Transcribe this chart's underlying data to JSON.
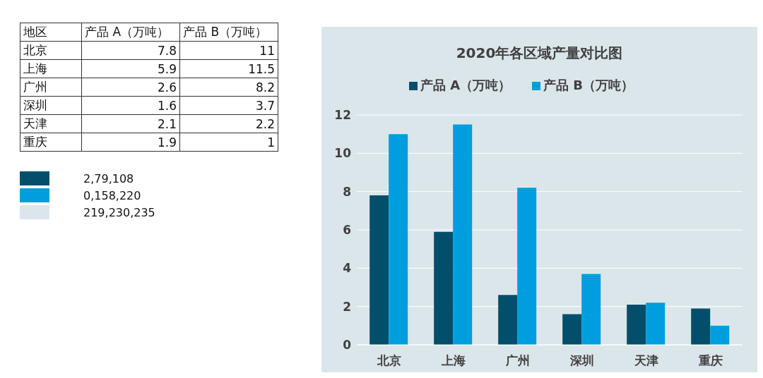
{
  "chart_data": [
    {
      "type": "heatmap",
      "categories": [
        "产品 A（万吨）",
        "产品 B（万吨）"
      ],
      "y_categories": [
        "北京",
        "上海",
        "广州",
        "深圳",
        "天津",
        "重庆"
      ],
      "cells": [
        [
          7.8,
          11
        ],
        [
          5.9,
          11.5
        ],
        [
          2.6,
          8.2
        ],
        [
          1.6,
          3.7
        ],
        [
          2.1,
          2.2
        ],
        [
          1.9,
          1
        ]
      ],
      "data_labels": true,
      "annotations": [
        "地区",
        "2,79,108",
        "0,158,220",
        "219,230,235"
      ]
    },
    {
      "type": "bar",
      "title": "2020年各区域产量对比图",
      "categories": [
        "北京",
        "上海",
        "广州",
        "深圳",
        "天津",
        "重庆"
      ],
      "series": [
        {
          "name": "产品 A（万吨）",
          "color": "#024f6c",
          "values": [
            7.8,
            5.9,
            2.6,
            1.6,
            2.1,
            1.9
          ]
        },
        {
          "name": "产品 B（万吨）",
          "color": "#009edc",
          "values": [
            11,
            11.5,
            8.2,
            3.7,
            2.2,
            1
          ]
        }
      ],
      "ylim": [
        0,
        12
      ],
      "yticks": [
        0,
        2,
        4,
        6,
        8,
        10,
        12
      ],
      "grid": "y",
      "legend": "top"
    }
  ]
}
